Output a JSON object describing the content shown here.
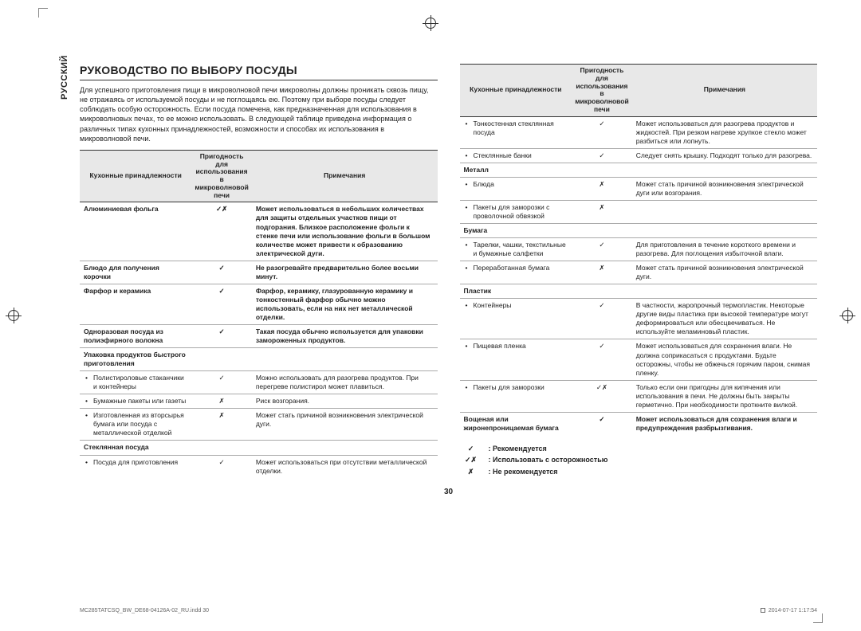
{
  "lang_tab": "РУССКИЙ",
  "title": "РУКОВОДСТВО ПО ВЫБОРУ ПОСУДЫ",
  "intro": "Для успешного приготовления пищи в микроволновой печи микроволны должны проникать сквозь пищу, не отражаясь от используемой посуды и не поглощаясь ею. Поэтому при выборе посуды следует соблюдать особую осторожность. Если посуда помечена, как предназначенная для использования в микроволновых печах, то ее можно использовать. В следующей таблице приведена информация о различных типах кухонных принадлежностей, возможности и способах их использования в микроволновой печи.",
  "headers": {
    "h1": "Кухонные принадлежности",
    "h2": "Пригодность для использования в микроволновой печи",
    "h3": "Примечания"
  },
  "left_rows": [
    {
      "type": "section",
      "c1": "Алюминиевая фольга",
      "c2": "✓✗",
      "c3": "Может использоваться в небольших количествах для защиты отдельных участков пищи от подгорания. Близкое расположение фольги к стенке печи или использование фольги в большом количестве может привести к образованию электрической дуги."
    },
    {
      "type": "section",
      "c1": "Блюдо для получения корочки",
      "c2": "✓",
      "c3": "Не разогревайте предварительно более восьми минут."
    },
    {
      "type": "section",
      "c1": "Фарфор и керамика",
      "c2": "✓",
      "c3": "Фарфор, керамику, глазурованную керамику и тонкостенный фарфор обычно можно использовать, если на них нет металлической отделки."
    },
    {
      "type": "section",
      "c1": "Одноразовая посуда из полиэфирного волокна",
      "c2": "✓",
      "c3": "Такая посуда обычно используется для упаковки замороженных продуктов."
    },
    {
      "type": "section",
      "c1": "Упаковка продуктов быстрого приготовления",
      "c2": "",
      "c3": ""
    },
    {
      "type": "bullet",
      "c1": "Полистироловые стаканчики и контейнеры",
      "c2": "✓",
      "c3": "Можно использовать для разогрева продуктов. При перегреве полистирол может плавиться."
    },
    {
      "type": "bullet",
      "c1": "Бумажные пакеты или газеты",
      "c2": "✗",
      "c3": "Риск возгорания."
    },
    {
      "type": "bullet",
      "c1": "Изготовленная из вторсырья бумага или посуда с металлической отделкой",
      "c2": "✗",
      "c3": "Может стать причиной возникновения электрической дуги."
    },
    {
      "type": "section",
      "c1": "Стеклянная посуда",
      "c2": "",
      "c3": ""
    },
    {
      "type": "bullet",
      "c1": "Посуда для приготовления",
      "c2": "✓",
      "c3": "Может использоваться при отсутствии металлической отделки.",
      "last": true
    }
  ],
  "right_rows": [
    {
      "type": "bullet",
      "c1": "Тонкостенная стеклянная посуда",
      "c2": "✓",
      "c3": "Может использоваться для разогрева продуктов и жидкостей. При резком нагреве хрупкое стекло может разбиться или лопнуть."
    },
    {
      "type": "bullet",
      "c1": "Стеклянные банки",
      "c2": "✓",
      "c3": "Следует снять крышку. Подходят только для разогрева."
    },
    {
      "type": "section",
      "c1": "Металл",
      "c2": "",
      "c3": ""
    },
    {
      "type": "bullet",
      "c1": "Блюда",
      "c2": "✗",
      "c3": "Может стать причиной возникновения электрической дуги или возгорания."
    },
    {
      "type": "bullet",
      "c1": "Пакеты для заморозки с проволочной обвязкой",
      "c2": "✗",
      "c3": ""
    },
    {
      "type": "section",
      "c1": "Бумага",
      "c2": "",
      "c3": ""
    },
    {
      "type": "bullet",
      "c1": "Тарелки, чашки, текстильные и бумажные салфетки",
      "c2": "✓",
      "c3": "Для приготовления в течение короткого времени и разогрева. Для поглощения избыточной влаги."
    },
    {
      "type": "bullet",
      "c1": "Переработанная бумага",
      "c2": "✗",
      "c3": "Может стать причиной возникновения электрической дуги."
    },
    {
      "type": "section",
      "c1": "Пластик",
      "c2": "",
      "c3": ""
    },
    {
      "type": "bullet",
      "c1": "Контейнеры",
      "c2": "✓",
      "c3": "В частности, жаропрочный термопластик. Некоторые другие виды пластика при высокой температуре могут деформироваться или обесцвечиваться. Не используйте меламиновый пластик."
    },
    {
      "type": "bullet",
      "c1": "Пищевая пленка",
      "c2": "✓",
      "c3": "Может использоваться для сохранения влаги. Не должна соприкасаться с продуктами. Будьте осторожны, чтобы не обжечься горячим паром, снимая пленку."
    },
    {
      "type": "bullet",
      "c1": "Пакеты для заморозки",
      "c2": "✓✗",
      "c3": "Только если они пригодны для кипячения или использования в печи. Не должны быть закрыты герметично. При необходимости проткните вилкой."
    },
    {
      "type": "section",
      "c1": "Вощеная или жиронепроницаемая бумага",
      "c2": "✓",
      "c3": "Может использоваться для сохранения влаги и предупреждения разбрызгивания.",
      "last": true
    }
  ],
  "legend": [
    {
      "sym": "✓",
      "lbl": ": Рекомендуется"
    },
    {
      "sym": "✓✗",
      "lbl": ": Использовать с осторожностью"
    },
    {
      "sym": "✗",
      "lbl": ": Не рекомендуется"
    }
  ],
  "page_num": "30",
  "footer_left": "MC285TATCSQ_BW_DE68-04126A-02_RU.indd   30",
  "footer_right": "2014-07-17   1:17:54"
}
